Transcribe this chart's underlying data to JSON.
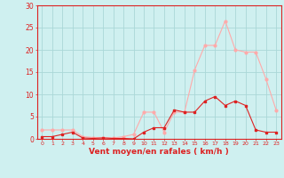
{
  "x": [
    0,
    1,
    2,
    3,
    4,
    5,
    6,
    7,
    8,
    9,
    10,
    11,
    12,
    13,
    14,
    15,
    16,
    17,
    18,
    19,
    20,
    21,
    22,
    23
  ],
  "y_rafales": [
    2,
    2,
    2,
    2,
    0.5,
    0.3,
    0.3,
    0.2,
    0.5,
    1,
    6,
    6,
    1.5,
    6,
    6,
    15.5,
    21,
    21,
    26.5,
    20,
    19.5,
    19.5,
    13.5,
    6.5
  ],
  "y_moyen": [
    0.5,
    0.5,
    1,
    1.5,
    0.2,
    0.1,
    0.2,
    0.1,
    0.1,
    0,
    1.5,
    2.5,
    2.5,
    6.5,
    6,
    6,
    8.5,
    9.5,
    7.5,
    8.5,
    7.5,
    2,
    1.5,
    1.5
  ],
  "color_rafales": "#ffaaaa",
  "color_moyen": "#dd2222",
  "bg_color": "#cff0f0",
  "grid_color": "#aad8d8",
  "xlabel": "Vent moyen/en rafales ( km/h )",
  "xlabel_color": "#dd2222",
  "ylabel_ticks": [
    0,
    5,
    10,
    15,
    20,
    25,
    30
  ],
  "ylim": [
    0,
    30
  ],
  "xlim_min": -0.5,
  "xlim_max": 23.5
}
